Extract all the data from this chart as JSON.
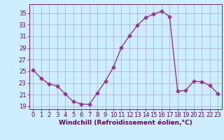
{
  "x": [
    0,
    1,
    2,
    3,
    4,
    5,
    6,
    7,
    8,
    9,
    10,
    11,
    12,
    13,
    14,
    15,
    16,
    17,
    18,
    19,
    20,
    21,
    22,
    23
  ],
  "y": [
    25.2,
    23.8,
    22.8,
    22.5,
    21.1,
    19.8,
    19.4,
    19.3,
    21.3,
    23.3,
    25.7,
    29.1,
    31.1,
    32.9,
    34.2,
    34.8,
    35.3,
    34.4,
    21.6,
    21.7,
    23.3,
    23.2,
    22.6,
    21.2
  ],
  "line_color": "#993399",
  "marker": "D",
  "markersize": 2.5,
  "linewidth": 1.0,
  "xlabel": "Windchill (Refroidissement éolien,°C)",
  "xlim": [
    -0.5,
    23.5
  ],
  "ylim": [
    18.5,
    36.5
  ],
  "yticks": [
    19,
    21,
    23,
    25,
    27,
    29,
    31,
    33,
    35
  ],
  "xticks": [
    0,
    1,
    2,
    3,
    4,
    5,
    6,
    7,
    8,
    9,
    10,
    11,
    12,
    13,
    14,
    15,
    16,
    17,
    18,
    19,
    20,
    21,
    22,
    23
  ],
  "bg_color": "#cceeff",
  "grid_color": "#aaaacc",
  "tick_color": "#660066",
  "label_color": "#660066",
  "tick_fontsize": 6,
  "xlabel_fontsize": 6.5
}
